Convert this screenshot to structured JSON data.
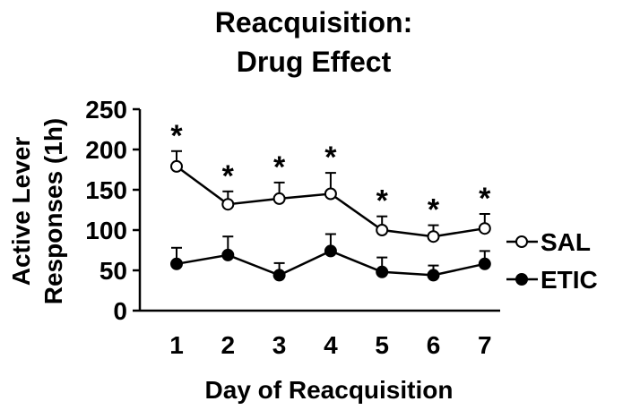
{
  "chart_data": {
    "type": "line",
    "title": [
      "Reacquisition:",
      "Drug Effect"
    ],
    "xlabel": "Day of Reacquisition",
    "ylabel": [
      "Active Lever",
      "Responses (1h)"
    ],
    "categories": [
      "1",
      "2",
      "3",
      "4",
      "5",
      "6",
      "7"
    ],
    "ylim": [
      0,
      250
    ],
    "yticks": [
      "0",
      "50",
      "100",
      "150",
      "200",
      "250"
    ],
    "grid": false,
    "legend_position": "right",
    "series": [
      {
        "name": "SAL",
        "marker": "open-circle",
        "values": [
          179,
          132,
          139,
          145,
          100,
          92,
          102
        ],
        "errors": [
          19,
          16,
          20,
          26,
          17,
          14,
          18
        ]
      },
      {
        "name": "ETIC",
        "marker": "filled-circle",
        "values": [
          58,
          69,
          44,
          74,
          48,
          44,
          58
        ],
        "errors": [
          20,
          23,
          15,
          21,
          18,
          12,
          16
        ]
      }
    ],
    "annotations": {
      "symbol": "*",
      "days": [
        "1",
        "2",
        "3",
        "4",
        "5",
        "6",
        "7"
      ]
    }
  }
}
